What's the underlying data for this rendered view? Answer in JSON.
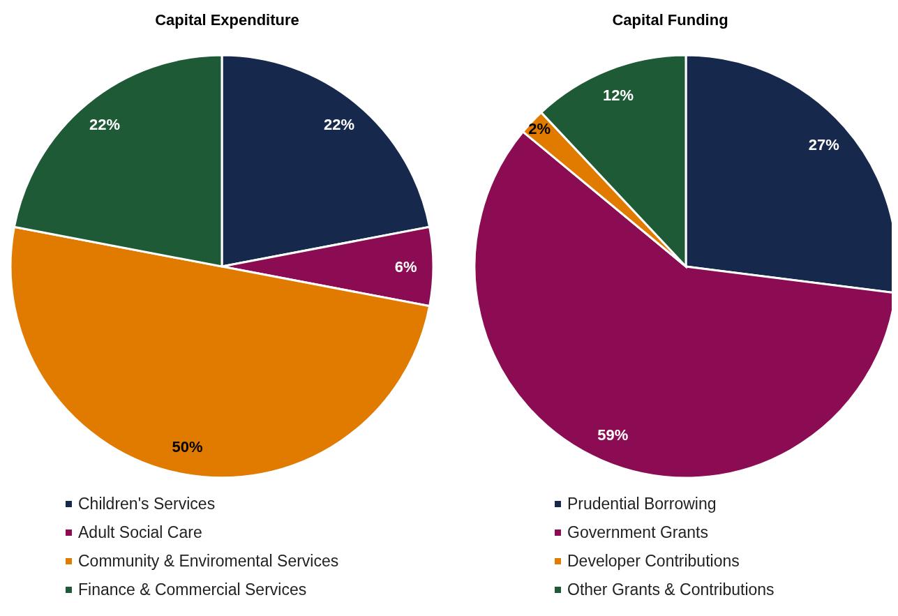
{
  "chart_data": [
    {
      "type": "pie",
      "title": "Capital Expenditure",
      "categories": [
        "Children's Services",
        "Adult Social Care",
        "Community & Enviromental Services",
        "Finance & Commercial Services"
      ],
      "values": [
        22,
        6,
        50,
        22
      ],
      "colors": [
        "#16284b",
        "#8b0c52",
        "#e07b00",
        "#1e5a35"
      ],
      "value_labels": [
        "22%",
        "6%",
        "50%",
        "22%"
      ],
      "legend": "bottom"
    },
    {
      "type": "pie",
      "title": "Capital Funding",
      "categories": [
        "Prudential Borrowing",
        "Government Grants",
        "Developer Contributions",
        "Other Grants & Contributions"
      ],
      "values": [
        27,
        59,
        2,
        12
      ],
      "colors": [
        "#16284b",
        "#8b0c52",
        "#e07b00",
        "#1e5a35"
      ],
      "value_labels": [
        "27%",
        "59%",
        "2%",
        "12%"
      ],
      "legend": "bottom"
    }
  ]
}
